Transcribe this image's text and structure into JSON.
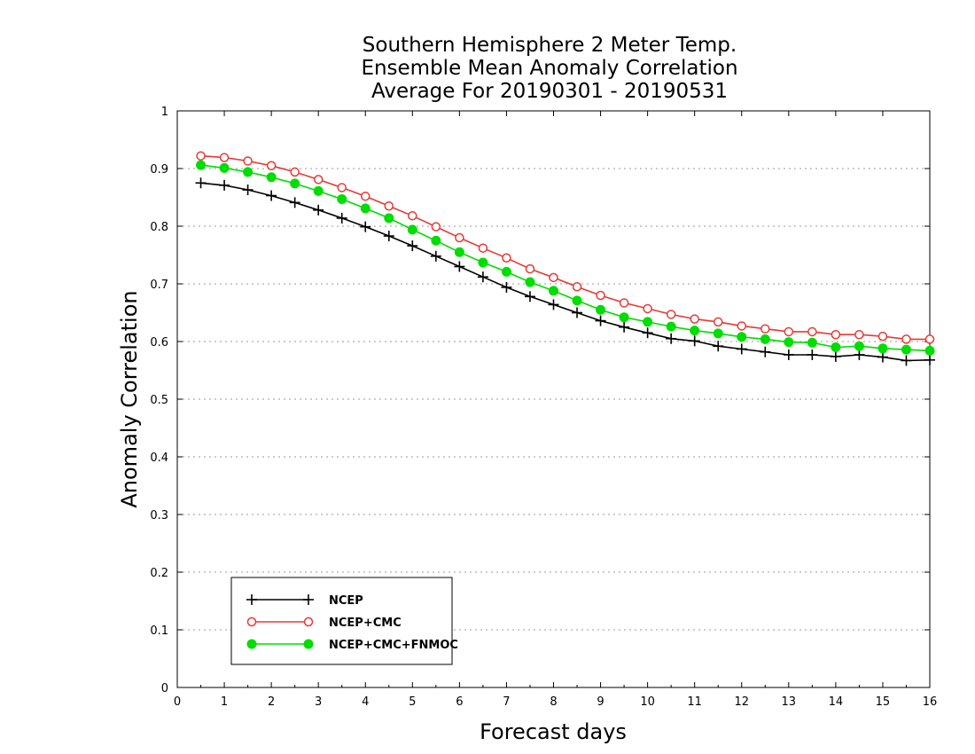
{
  "chart_data": {
    "type": "line",
    "title_lines": [
      "Southern Hemisphere 2 Meter Temp.",
      "Ensemble Mean Anomaly Correlation",
      "Average For 20190301 - 20190531"
    ],
    "xlabel": "Forecast days",
    "ylabel": "Anomaly Correlation",
    "xlim": [
      0,
      16
    ],
    "ylim": [
      0,
      1
    ],
    "xticks": [
      "0",
      "1",
      "2",
      "3",
      "4",
      "5",
      "6",
      "7",
      "8",
      "9",
      "10",
      "11",
      "12",
      "13",
      "14",
      "15",
      "16"
    ],
    "yticks": [
      "0",
      "0.1",
      "0.2",
      "0.3",
      "0.4",
      "0.5",
      "0.6",
      "0.7",
      "0.8",
      "0.9",
      "1"
    ],
    "grid": "horizontal dotted",
    "legend_position": "bottom-left",
    "x": [
      0.5,
      1,
      1.5,
      2,
      2.5,
      3,
      3.5,
      4,
      4.5,
      5,
      5.5,
      6,
      6.5,
      7,
      7.5,
      8,
      8.5,
      9,
      9.5,
      10,
      10.5,
      11,
      11.5,
      12,
      12.5,
      13,
      13.5,
      14,
      14.5,
      15,
      15.5,
      16
    ],
    "series": [
      {
        "name": "NCEP",
        "color": "#000000",
        "marker": "plus",
        "values": [
          0.875,
          0.871,
          0.863,
          0.853,
          0.841,
          0.828,
          0.814,
          0.799,
          0.783,
          0.766,
          0.748,
          0.73,
          0.712,
          0.694,
          0.678,
          0.664,
          0.65,
          0.636,
          0.625,
          0.615,
          0.605,
          0.601,
          0.592,
          0.587,
          0.582,
          0.577,
          0.577,
          0.574,
          0.577,
          0.573,
          0.567,
          0.568
        ]
      },
      {
        "name": "NCEP+CMC",
        "color": "#e53935",
        "marker": "open-circle",
        "values": [
          0.922,
          0.919,
          0.913,
          0.905,
          0.894,
          0.881,
          0.867,
          0.852,
          0.835,
          0.818,
          0.799,
          0.78,
          0.762,
          0.745,
          0.726,
          0.711,
          0.695,
          0.68,
          0.667,
          0.657,
          0.647,
          0.639,
          0.634,
          0.627,
          0.622,
          0.617,
          0.617,
          0.612,
          0.612,
          0.609,
          0.604,
          0.604
        ]
      },
      {
        "name": "NCEP+CMC+FNMOC",
        "color": "#00dd00",
        "marker": "filled-circle",
        "values": [
          0.906,
          0.901,
          0.894,
          0.885,
          0.874,
          0.861,
          0.847,
          0.831,
          0.814,
          0.794,
          0.775,
          0.755,
          0.737,
          0.721,
          0.703,
          0.688,
          0.671,
          0.655,
          0.642,
          0.634,
          0.626,
          0.619,
          0.614,
          0.608,
          0.604,
          0.599,
          0.598,
          0.59,
          0.592,
          0.588,
          0.586,
          0.584
        ]
      }
    ]
  }
}
